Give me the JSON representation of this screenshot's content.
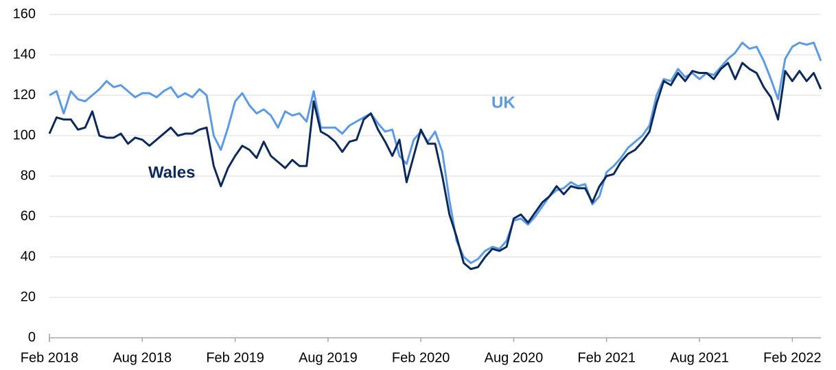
{
  "chart_data": {
    "type": "line",
    "categories": [
      "Feb 2018",
      null,
      null,
      null,
      null,
      null,
      null,
      null,
      null,
      null,
      null,
      null,
      null,
      "Aug 2018",
      null,
      null,
      null,
      null,
      null,
      null,
      null,
      null,
      null,
      null,
      null,
      null,
      "Feb 2019",
      null,
      null,
      null,
      null,
      null,
      null,
      null,
      null,
      null,
      null,
      null,
      null,
      "Aug 2019",
      null,
      null,
      null,
      null,
      null,
      null,
      null,
      null,
      null,
      null,
      null,
      null,
      "Feb 2020",
      null,
      null,
      null,
      null,
      null,
      null,
      null,
      null,
      null,
      null,
      null,
      null,
      "Aug 2020",
      null,
      null,
      null,
      null,
      null,
      null,
      null,
      null,
      null,
      null,
      null,
      null,
      "Feb 2021",
      null,
      null,
      null,
      null,
      null,
      null,
      null,
      null,
      null,
      null,
      null,
      null,
      "Aug 2021",
      null,
      null,
      null,
      null,
      null,
      null,
      null,
      null,
      null,
      null,
      null,
      null,
      "Feb 2022",
      null,
      null,
      null,
      null
    ],
    "series": [
      {
        "name": "UK",
        "color": "#5b9be6",
        "values": [
          120,
          122,
          111,
          122,
          118,
          117,
          120,
          123,
          127,
          124,
          125,
          122,
          119,
          121,
          121,
          119,
          122,
          124,
          119,
          121,
          119,
          123,
          120,
          100,
          93,
          104,
          117,
          121,
          115,
          111,
          113,
          110,
          104,
          112,
          110,
          111,
          107,
          122,
          104,
          104,
          104,
          101,
          105,
          107,
          109,
          111,
          106,
          102,
          103,
          90,
          86,
          98,
          102,
          97,
          102,
          92,
          68,
          48,
          40,
          37,
          39,
          43,
          45,
          44,
          48,
          58,
          59,
          56,
          60,
          65,
          70,
          73,
          74,
          77,
          75,
          76,
          66,
          70,
          82,
          85,
          89,
          94,
          97,
          100,
          105,
          120,
          128,
          127,
          133,
          129,
          131,
          128,
          131,
          130,
          134,
          138,
          141,
          146,
          143,
          144,
          137,
          128,
          118,
          138,
          144,
          146,
          145,
          146,
          137
        ]
      },
      {
        "name": "Wales",
        "color": "#0b2a5b",
        "values": [
          101,
          109,
          108,
          108,
          103,
          104,
          112,
          100,
          99,
          99,
          101,
          96,
          99,
          98,
          95,
          98,
          101,
          104,
          100,
          101,
          101,
          103,
          104,
          85,
          75,
          84,
          90,
          95,
          93,
          89,
          97,
          90,
          87,
          84,
          88,
          85,
          85,
          117,
          102,
          100,
          97,
          92,
          97,
          98,
          108,
          111,
          103,
          97,
          90,
          98,
          77,
          90,
          103,
          96,
          96,
          80,
          61,
          50,
          37,
          34,
          35,
          40,
          44,
          43,
          45,
          59,
          61,
          57,
          62,
          67,
          70,
          75,
          71,
          75,
          74,
          74,
          67,
          75,
          80,
          81,
          87,
          91,
          93,
          97,
          102,
          116,
          127,
          125,
          131,
          127,
          132,
          131,
          131,
          128,
          133,
          136,
          128,
          136,
          133,
          131,
          124,
          119,
          108,
          132,
          127,
          132,
          127,
          131,
          123
        ]
      }
    ],
    "annotations": [
      {
        "text": "UK",
        "color": "#5b9be6"
      },
      {
        "text": "Wales",
        "color": "#0b2a5b"
      }
    ],
    "ylim": [
      0,
      160
    ],
    "yticks": [
      0,
      20,
      40,
      60,
      80,
      100,
      120,
      140,
      160
    ],
    "grid": true
  }
}
